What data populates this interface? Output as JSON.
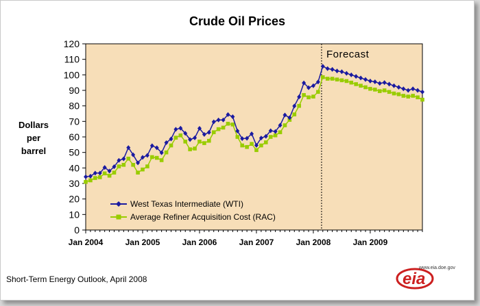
{
  "chart_data": {
    "type": "line",
    "title": "Crude Oil Prices",
    "ylabel": "Dollars per barrel",
    "ylabel_lines": [
      "Dollars",
      "per",
      "barrel"
    ],
    "ylim": [
      0,
      120
    ],
    "yticks": [
      0,
      10,
      20,
      30,
      40,
      50,
      60,
      70,
      80,
      90,
      100,
      110,
      120
    ],
    "x_start": "Jan 2004",
    "x_labels": [
      "Jan 2004",
      "Jan 2005",
      "Jan 2006",
      "Jan 2007",
      "Jan 2008",
      "Jan 2009"
    ],
    "forecast_label": "Forecast",
    "forecast_start": "Jan 2008",
    "legend_position": "bottom-left",
    "grid": false,
    "series": [
      {
        "name": "West Texas Intermediate (WTI)",
        "color": "#1a1aa0",
        "marker": "diamond",
        "values": [
          34.3,
          34.7,
          36.7,
          36.7,
          40.3,
          38.0,
          40.8,
          44.9,
          45.9,
          53.1,
          48.5,
          43.3,
          46.8,
          48.1,
          54.3,
          53.0,
          49.8,
          56.3,
          58.7,
          64.9,
          65.6,
          62.3,
          58.3,
          59.4,
          65.5,
          61.6,
          62.9,
          69.7,
          70.9,
          70.9,
          74.4,
          73.0,
          63.8,
          58.9,
          59.1,
          62.0,
          54.6,
          59.3,
          60.4,
          63.98,
          63.5,
          67.5,
          74.1,
          72.4,
          79.9,
          85.8,
          94.8,
          91.7,
          93.0,
          95.4,
          105.5,
          104.0,
          103.5,
          102.5,
          102.0,
          101.0,
          100.0,
          99.0,
          98.0,
          97.0,
          96.0,
          95.5,
          94.5,
          95.0,
          94.0,
          93.0,
          92.0,
          91.0,
          90.0,
          91.0,
          90.0,
          89.0
        ]
      },
      {
        "name": "Average Refiner Acquisition Cost (RAC)",
        "color": "#99cc00",
        "marker": "square",
        "values": [
          31.0,
          32.0,
          33.5,
          34.0,
          36.5,
          35.0,
          37.0,
          41.0,
          42.0,
          46.0,
          42.0,
          37.0,
          39.0,
          41.0,
          47.0,
          46.5,
          45.0,
          50.0,
          54.5,
          59.5,
          61.0,
          57.0,
          52.0,
          52.5,
          57.0,
          56.0,
          57.5,
          63.0,
          65.0,
          66.0,
          68.5,
          68.0,
          60.0,
          54.5,
          53.5,
          55.5,
          51.5,
          54.5,
          56.5,
          60.0,
          61.0,
          63.0,
          67.5,
          71.0,
          74.5,
          80.0,
          87.0,
          85.5,
          86.0,
          89.0,
          98.5,
          97.5,
          97.5,
          97.0,
          96.5,
          96.0,
          95.0,
          94.0,
          93.0,
          92.0,
          91.0,
          90.5,
          89.5,
          90.0,
          89.0,
          88.0,
          87.5,
          86.5,
          86.0,
          86.5,
          85.5,
          84.0
        ]
      }
    ]
  },
  "footer": {
    "source": "Short-Term Energy Outlook, April 2008",
    "logo_url_text": "www.eia.doe.gov",
    "logo_text": "eia"
  },
  "colors": {
    "plot_bg": "#f7deb8",
    "wti": "#1a1aa0",
    "rac": "#99cc00",
    "logo_red": "#cc2020"
  }
}
